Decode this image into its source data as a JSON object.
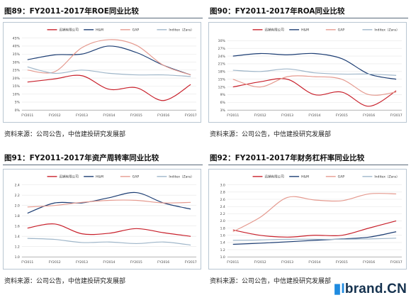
{
  "panels": [
    {
      "title": "图89：FY2011-2017年ROE同业比较",
      "source": "资料来源：公司公告，中信建投研究发展部",
      "chart_data": {
        "type": "line",
        "categories": [
          "FY2011",
          "FY2012",
          "FY2013",
          "FY2014",
          "FY2015",
          "FY2016",
          "FY2017"
        ],
        "ylim": [
          0,
          45
        ],
        "ystep": 5,
        "yformat": "pct",
        "series": [
          {
            "name": "迅销有限公司",
            "color": "#c8202b",
            "values": [
              17.5,
              19.5,
              21.5,
              13,
              14,
              6,
              16
            ]
          },
          {
            "name": "H&M",
            "color": "#1c3d73",
            "values": [
              31.5,
              34.5,
              35,
              40,
              36,
              28,
              22
            ]
          },
          {
            "name": "GAP",
            "color": "#e59a8f",
            "values": [
              25,
              24,
              39,
              44,
              40.5,
              28,
              22
            ]
          },
          {
            "name": "Inditex（Zara）",
            "color": "#9fb6c9",
            "values": [
              27,
              23,
              25,
              23,
              22,
              22,
              21
            ]
          }
        ]
      }
    },
    {
      "title": "图90：FY2011-2017年ROA同业比较",
      "source": "资料来源：公司公告，中信建投研究发展部",
      "chart_data": {
        "type": "line",
        "categories": [
          "FY2011",
          "FY2012",
          "FY2013",
          "FY2014",
          "FY2015",
          "FY2016",
          "FY2017"
        ],
        "ylim": [
          3,
          31
        ],
        "ystep": 3,
        "yformat": "pct",
        "series": [
          {
            "name": "迅销有限公司",
            "color": "#c8202b",
            "values": [
              12,
              14,
              15,
              9,
              10,
              4.5,
              10.5
            ]
          },
          {
            "name": "H&M",
            "color": "#1c3d73",
            "values": [
              24,
              25,
              24.5,
              25,
              23,
              17,
              15
            ]
          },
          {
            "name": "GAP",
            "color": "#e59a8f",
            "values": [
              15,
              12,
              16,
              16,
              15,
              9,
              10
            ]
          },
          {
            "name": "Inditex（Zara）",
            "color": "#9fb6c9",
            "values": [
              18.5,
              18,
              19,
              17.5,
              17,
              17,
              16.5
            ]
          }
        ]
      }
    },
    {
      "title": "图91：FY2011-2017年资产周转率同业比较",
      "source": "资料来源：公司公告，中信建投研究发展部",
      "chart_data": {
        "type": "line",
        "categories": [
          "FY2011",
          "FY2012",
          "FY2013",
          "FY2014",
          "FY2015",
          "FY2016",
          "FY2017"
        ],
        "ylim": [
          1.0,
          2.4
        ],
        "ystep": 0.2,
        "yformat": "dec1",
        "series": [
          {
            "name": "迅销有限公司",
            "color": "#c8202b",
            "values": [
              1.56,
              1.64,
              1.45,
              1.46,
              1.55,
              1.47,
              1.4
            ]
          },
          {
            "name": "H&M",
            "color": "#1c3d73",
            "values": [
              1.85,
              2.05,
              2.05,
              2.15,
              2.25,
              2.05,
              1.93
            ]
          },
          {
            "name": "GAP",
            "color": "#e59a8f",
            "values": [
              1.97,
              2.0,
              2.06,
              2.1,
              2.1,
              2.05,
              2.06
            ]
          },
          {
            "name": "Inditex（Zara）",
            "color": "#9fb6c9",
            "values": [
              1.36,
              1.34,
              1.28,
              1.29,
              1.26,
              1.29,
              1.23
            ]
          }
        ]
      }
    },
    {
      "title": "图92：FY2011-2017年财务杠杆率同业比较",
      "source": "资料来源：公司公告，中信建投研究发展部",
      "chart_data": {
        "type": "line",
        "categories": [
          "FY2011",
          "FY2012",
          "FY2013",
          "FY2014",
          "FY2015",
          "FY2016",
          "FY2017"
        ],
        "ylim": [
          1.0,
          3.0
        ],
        "ystep": 0.2,
        "yformat": "dec1",
        "series": [
          {
            "name": "迅销有限公司",
            "color": "#c8202b",
            "values": [
              1.75,
              1.6,
              1.55,
              1.6,
              1.6,
              1.8,
              2.0
            ]
          },
          {
            "name": "H&M",
            "color": "#1c3d73",
            "values": [
              1.35,
              1.38,
              1.42,
              1.46,
              1.5,
              1.55,
              1.7
            ]
          },
          {
            "name": "GAP",
            "color": "#e59a8f",
            "values": [
              1.7,
              2.1,
              2.65,
              2.58,
              2.56,
              2.75,
              2.75
            ]
          },
          {
            "name": "Inditex（Zara）",
            "color": "#9fb6c9",
            "values": [
              1.46,
              1.47,
              1.49,
              1.49,
              1.49,
              1.5,
              1.52
            ]
          }
        ]
      }
    }
  ],
  "watermark": {
    "prefix": "I",
    "text": "brand.CN"
  }
}
